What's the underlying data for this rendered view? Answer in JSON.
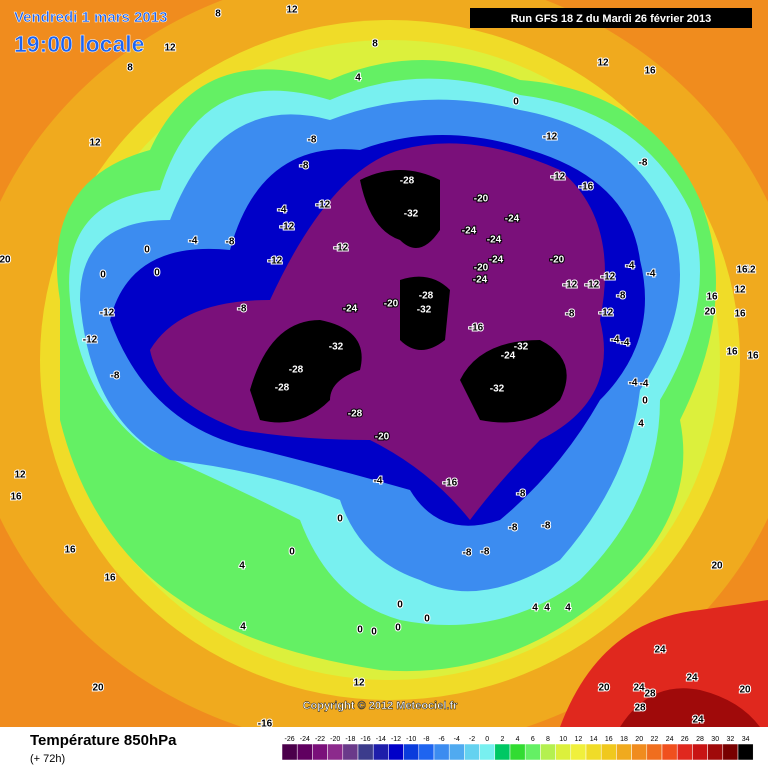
{
  "header": {
    "date": "Vendredi 1 mars 2013",
    "time": "19:00 locale",
    "run": "Run GFS 18 Z du Mardi 26 février 2013"
  },
  "footer": {
    "title": "Température 850hPa",
    "lead": "(+ 72h)",
    "copyright": "Copyright © 2012 Meteociel.fr"
  },
  "colorbar": {
    "ticks": [
      -26,
      -24,
      -22,
      -20,
      -18,
      -16,
      -14,
      -12,
      -10,
      -8,
      -6,
      -4,
      -2,
      0,
      2,
      4,
      6,
      8,
      10,
      12,
      14,
      16,
      18,
      20,
      22,
      24,
      26,
      28,
      30,
      32,
      34
    ],
    "colors": [
      "#4b004b",
      "#600060",
      "#7a107a",
      "#8c2a8c",
      "#6a3a8a",
      "#3c3c8c",
      "#1e1eaa",
      "#0000c8",
      "#0a3cdc",
      "#1e64f0",
      "#3c8cf0",
      "#50aaf0",
      "#64d2f0",
      "#78f0f0",
      "#00c864",
      "#32dc32",
      "#64f064",
      "#b4f050",
      "#dcf03c",
      "#f0f03c",
      "#f0dc28",
      "#f0c81e",
      "#f0aa1e",
      "#f08c1e",
      "#f06e1e",
      "#f0501e",
      "#e0281e",
      "#c81414",
      "#a00a0a",
      "#780000",
      "#000000"
    ]
  },
  "contour_labels": [
    12,
    8,
    12,
    8,
    8,
    4,
    12,
    16,
    12,
    0,
    -12,
    -8,
    -8,
    -8,
    -28,
    -12,
    -16,
    -20,
    -32,
    -24,
    -4,
    -12,
    -12,
    -24,
    -24,
    -4,
    -8,
    0,
    -12,
    -20,
    -24,
    -20,
    -24,
    -12,
    20,
    0,
    0,
    -4,
    -4,
    -12,
    -12,
    -12,
    -28,
    -20,
    -24,
    -32,
    -8,
    -8,
    -8,
    -12,
    -16,
    -12,
    -12,
    -32,
    -32,
    -24,
    -4,
    -4,
    -28,
    -28,
    -32,
    -8,
    -28,
    -20,
    -4,
    -4,
    0,
    -4,
    -16,
    -8,
    -8,
    -8,
    0,
    0,
    -8,
    -8,
    4,
    4,
    0,
    0,
    0,
    0,
    0,
    4,
    4,
    4,
    12,
    20,
    20,
    24,
    28,
    28,
    24,
    24,
    20,
    24,
    -16,
    16,
    16,
    12,
    16,
    16,
    16,
    16,
    12,
    16,
    20,
    12,
    20,
    4,
    16
  ]
}
